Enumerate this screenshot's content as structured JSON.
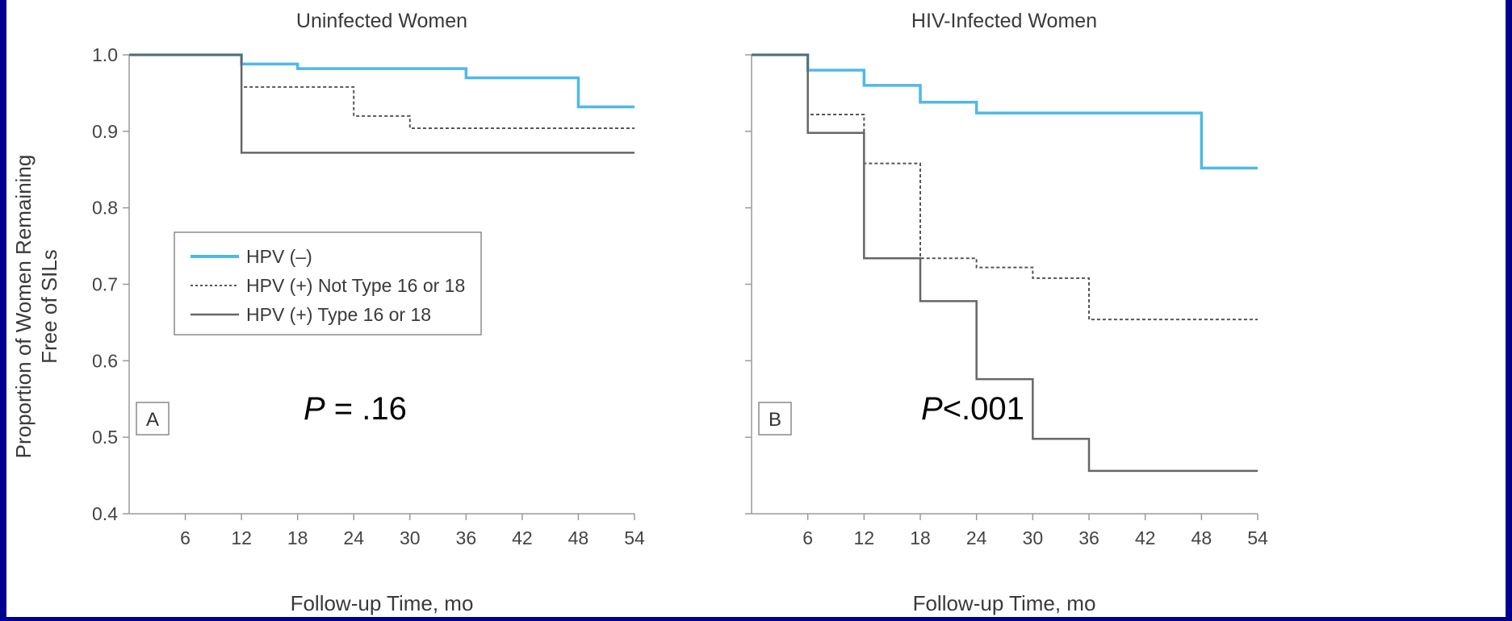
{
  "colors": {
    "background_border": "#000090",
    "hpv_negative": "#4fb8ea",
    "hpv_not_16_18": "#555555",
    "hpv_16_18": "#666666"
  },
  "legend": {
    "items": [
      {
        "key": "neg",
        "label": "HPV (–)",
        "style": "solid-blue"
      },
      {
        "key": "not1618",
        "label": "HPV (+) Not Type 16 or 18",
        "style": "dotted"
      },
      {
        "key": "t1618",
        "label": "HPV (+) Type 16 or 18",
        "style": "solid-gray"
      }
    ]
  },
  "y_axis_label_line1": "Proportion of Women Remaining",
  "y_axis_label_line2": "Free of SILs",
  "chart_data": [
    {
      "type": "line",
      "step": true,
      "title": "Uninfected Women",
      "panel": "A",
      "pvalue_italic": "P",
      "pvalue_rest": " = .16",
      "xlabel": "Follow-up Time, mo",
      "xlim": [
        0,
        54
      ],
      "ylim": [
        0.4,
        1.0
      ],
      "xticks": [
        6,
        12,
        18,
        24,
        30,
        36,
        42,
        48,
        54
      ],
      "yticks": [
        "1.0",
        "0.9",
        "0.8",
        "0.7",
        "0.6",
        "0.5",
        "0.4"
      ],
      "series": [
        {
          "name": "HPV (–)",
          "x": [
            0,
            12,
            18,
            36,
            48,
            54
          ],
          "y": [
            1.0,
            0.988,
            0.982,
            0.97,
            0.932,
            0.932
          ]
        },
        {
          "name": "HPV (+) Not Type 16 or 18",
          "x": [
            0,
            12,
            24,
            30,
            54
          ],
          "y": [
            1.0,
            0.958,
            0.92,
            0.904,
            0.904
          ]
        },
        {
          "name": "HPV (+) Type 16 or 18",
          "x": [
            0,
            12,
            54
          ],
          "y": [
            1.0,
            0.872,
            0.872
          ]
        }
      ]
    },
    {
      "type": "line",
      "step": true,
      "title": "HIV-Infected Women",
      "panel": "B",
      "pvalue_italic": "P",
      "pvalue_rest": "<.001",
      "xlabel": "Follow-up Time, mo",
      "xlim": [
        0,
        54
      ],
      "ylim": [
        0.4,
        1.0
      ],
      "xticks": [
        6,
        12,
        18,
        24,
        30,
        36,
        42,
        48,
        54
      ],
      "yticks": [],
      "series": [
        {
          "name": "HPV (–)",
          "x": [
            0,
            6,
            12,
            18,
            24,
            48,
            54
          ],
          "y": [
            1.0,
            0.98,
            0.96,
            0.938,
            0.924,
            0.852,
            0.852
          ]
        },
        {
          "name": "HPV (+) Not Type 16 or 18",
          "x": [
            0,
            6,
            12,
            18,
            24,
            30,
            36,
            54
          ],
          "y": [
            1.0,
            0.922,
            0.858,
            0.734,
            0.722,
            0.708,
            0.654,
            0.654
          ]
        },
        {
          "name": "HPV (+) Type 16 or 18",
          "x": [
            0,
            6,
            12,
            18,
            24,
            30,
            36,
            54
          ],
          "y": [
            1.0,
            0.898,
            0.734,
            0.678,
            0.576,
            0.498,
            0.456,
            0.456
          ]
        }
      ]
    }
  ]
}
